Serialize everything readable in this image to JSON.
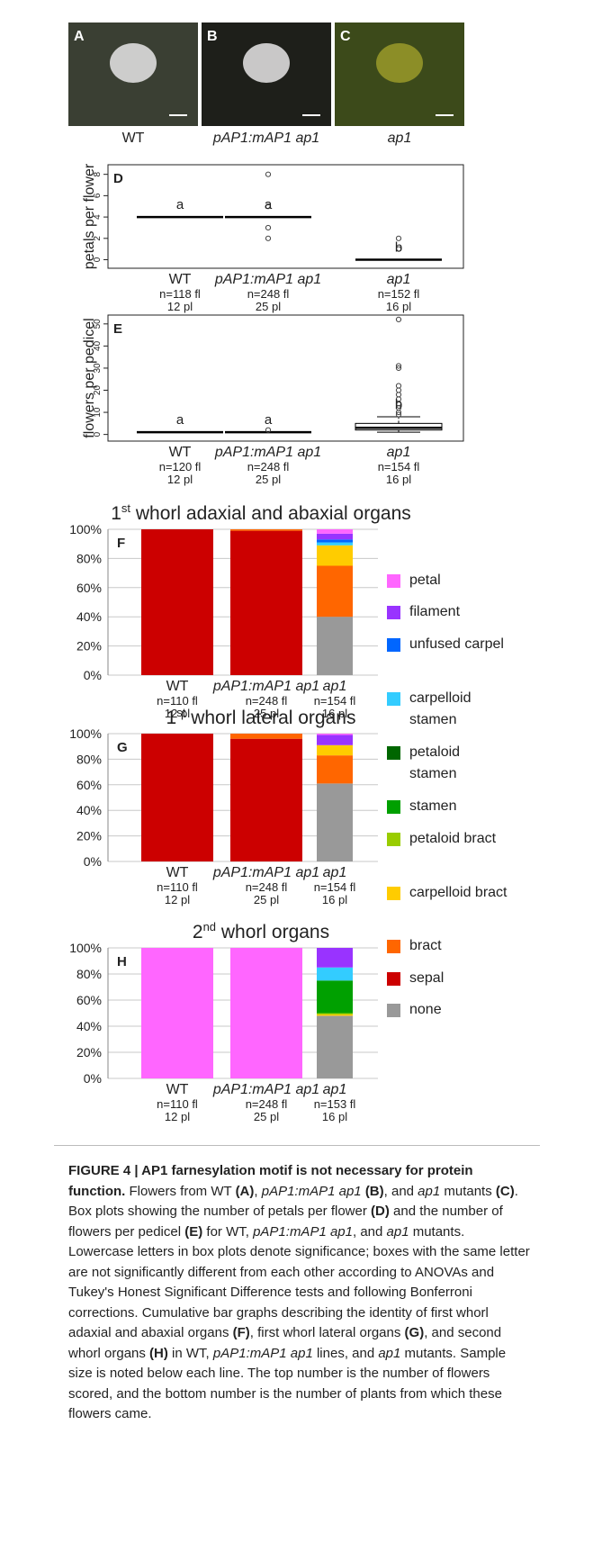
{
  "photos": [
    {
      "panel": "A",
      "label": "WT",
      "italic": false
    },
    {
      "panel": "B",
      "label": "pAP1:mAP1 ap1",
      "italic": true
    },
    {
      "panel": "C",
      "label": "ap1",
      "italic": true
    }
  ],
  "chart_data": [
    {
      "type": "box",
      "panel": "D",
      "ylabel": "petals per flower",
      "ylim": [
        -0.8,
        8.9
      ],
      "yticks": [
        0,
        2,
        4,
        6,
        8
      ],
      "categories": [
        "WT",
        "pAP1:mAP1 ap1",
        "ap1"
      ],
      "category_italic": [
        false,
        true,
        true
      ],
      "n_labels": [
        "n=118 fl",
        "n=248 fl",
        "n=152 fl"
      ],
      "pl_labels": [
        "12 pl",
        "25 pl",
        "16 pl"
      ],
      "color": "#000000",
      "groups": [
        {
          "median": 4,
          "q1": 4,
          "q3": 4,
          "lower": 4,
          "upper": 4,
          "outliers": [],
          "letter": "a"
        },
        {
          "median": 4,
          "q1": 4,
          "q3": 4,
          "lower": 4,
          "upper": 4,
          "outliers": [
            8,
            5,
            3,
            2
          ],
          "letter": "a"
        },
        {
          "median": 0,
          "q1": 0,
          "q3": 0,
          "lower": 0,
          "upper": 0,
          "outliers": [
            2,
            1
          ],
          "letter": "b"
        }
      ]
    },
    {
      "type": "box",
      "panel": "E",
      "ylabel": "flowers per pedicel",
      "ylim": [
        -3,
        54
      ],
      "yticks": [
        0,
        10,
        20,
        30,
        40,
        50
      ],
      "categories": [
        "WT",
        "pAP1:mAP1 ap1",
        "ap1"
      ],
      "category_italic": [
        false,
        true,
        true
      ],
      "n_labels": [
        "n=120 fl",
        "n=248 fl",
        "n=154 fl"
      ],
      "pl_labels": [
        "12 pl",
        "25 pl",
        "16 pl"
      ],
      "color": "#000000",
      "groups": [
        {
          "median": 1,
          "q1": 1,
          "q3": 1,
          "lower": 1,
          "upper": 1,
          "outliers": [],
          "letter": "a"
        },
        {
          "median": 1,
          "q1": 1,
          "q3": 1,
          "lower": 1,
          "upper": 1,
          "outliers": [
            2
          ],
          "letter": "a"
        },
        {
          "median": 3,
          "q1": 2,
          "q3": 5,
          "lower": 1,
          "upper": 8,
          "outliers": [
            9,
            10,
            12,
            14,
            16,
            18,
            20,
            22,
            30,
            31,
            52
          ],
          "letter": "b"
        }
      ]
    },
    {
      "type": "stacked_bar",
      "panel": "F",
      "title": {
        "main": "1",
        "sup": "st",
        "rest": " whorl adaxial and abaxial organs"
      },
      "categories": [
        "WT",
        "pAP1:mAP1 ap1",
        "ap1"
      ],
      "category_italic": [
        false,
        true,
        true
      ],
      "n_labels": [
        "n=110 fl",
        "n=248 fl",
        "n=154 fl"
      ],
      "pl_labels": [
        "12 pl",
        "25 pl",
        "16 pl"
      ],
      "ylim": [
        0,
        100
      ],
      "yticks": [
        {
          "value": 0,
          "label": "0%"
        },
        {
          "value": 20,
          "label": "20%"
        },
        {
          "value": 40,
          "label": "40%"
        },
        {
          "value": 60,
          "label": "60%"
        },
        {
          "value": 80,
          "label": "80%"
        },
        {
          "value": 100,
          "label": "100%"
        }
      ],
      "series": [
        {
          "name": "none",
          "color": "#999999",
          "values": [
            0,
            0,
            40
          ]
        },
        {
          "name": "sepal",
          "color": "#cc0000",
          "values": [
            100,
            99,
            0
          ]
        },
        {
          "name": "bract",
          "color": "#ff6600",
          "values": [
            0,
            1,
            35
          ]
        },
        {
          "name": "carpelloid bract",
          "color": "#ffcc00",
          "values": [
            0,
            0,
            14
          ]
        },
        {
          "name": "petaloid bract",
          "color": "#99cc00",
          "values": [
            0,
            0,
            0
          ]
        },
        {
          "name": "stamen",
          "color": "#00a000",
          "values": [
            0,
            0,
            0
          ]
        },
        {
          "name": "petaloid stamen",
          "color": "#006600",
          "values": [
            0,
            0,
            0
          ]
        },
        {
          "name": "carpelloid stamen",
          "color": "#33ccff",
          "values": [
            0,
            0,
            2
          ]
        },
        {
          "name": "unfused carpel",
          "color": "#0066ff",
          "values": [
            0,
            0,
            2
          ]
        },
        {
          "name": "filament",
          "color": "#9933ff",
          "values": [
            0,
            0,
            4
          ]
        },
        {
          "name": "petal",
          "color": "#ff66ff",
          "values": [
            0,
            0,
            3
          ]
        }
      ]
    },
    {
      "type": "stacked_bar",
      "panel": "G",
      "title": {
        "main": "1",
        "sup": "st",
        "rest": " whorl lateral organs"
      },
      "categories": [
        "WT",
        "pAP1:mAP1 ap1",
        "ap1"
      ],
      "category_italic": [
        false,
        true,
        true
      ],
      "n_labels": [
        "n=110 fl",
        "n=248 fl",
        "n=154 fl"
      ],
      "pl_labels": [
        "12 pl",
        "25 pl",
        "16 pl"
      ],
      "ylim": [
        0,
        100
      ],
      "yticks": [
        {
          "value": 0,
          "label": "0%"
        },
        {
          "value": 20,
          "label": "20%"
        },
        {
          "value": 40,
          "label": "40%"
        },
        {
          "value": 60,
          "label": "60%"
        },
        {
          "value": 80,
          "label": "80%"
        },
        {
          "value": 100,
          "label": "100%"
        }
      ],
      "series": [
        {
          "name": "none",
          "color": "#999999",
          "values": [
            0,
            0,
            61
          ]
        },
        {
          "name": "sepal",
          "color": "#cc0000",
          "values": [
            100,
            96,
            0
          ]
        },
        {
          "name": "bract",
          "color": "#ff6600",
          "values": [
            0,
            4,
            22
          ]
        },
        {
          "name": "carpelloid bract",
          "color": "#ffcc00",
          "values": [
            0,
            0,
            8
          ]
        },
        {
          "name": "petaloid bract",
          "color": "#99cc00",
          "values": [
            0,
            0,
            0
          ]
        },
        {
          "name": "stamen",
          "color": "#00a000",
          "values": [
            0,
            0,
            0
          ]
        },
        {
          "name": "petaloid stamen",
          "color": "#006600",
          "values": [
            0,
            0,
            0
          ]
        },
        {
          "name": "carpelloid stamen",
          "color": "#33ccff",
          "values": [
            0,
            0,
            0
          ]
        },
        {
          "name": "unfused carpel",
          "color": "#0066ff",
          "values": [
            0,
            0,
            0
          ]
        },
        {
          "name": "filament",
          "color": "#9933ff",
          "values": [
            0,
            0,
            8
          ]
        },
        {
          "name": "petal",
          "color": "#ff66ff",
          "values": [
            0,
            0,
            1
          ]
        }
      ]
    },
    {
      "type": "stacked_bar",
      "panel": "H",
      "title": {
        "main": "2",
        "sup": "nd",
        "rest": " whorl organs"
      },
      "categories": [
        "WT",
        "pAP1:mAP1 ap1",
        "ap1"
      ],
      "category_italic": [
        false,
        true,
        true
      ],
      "n_labels": [
        "n=110 fl",
        "n=248 fl",
        "n=153 fl"
      ],
      "pl_labels": [
        "12 pl",
        "25 pl",
        "16 pl"
      ],
      "ylim": [
        0,
        100
      ],
      "yticks": [
        {
          "value": 0,
          "label": "0%"
        },
        {
          "value": 20,
          "label": "20%"
        },
        {
          "value": 40,
          "label": "40%"
        },
        {
          "value": 60,
          "label": "60%"
        },
        {
          "value": 80,
          "label": "80%"
        },
        {
          "value": 100,
          "label": "100%"
        }
      ],
      "series": [
        {
          "name": "none",
          "color": "#999999",
          "values": [
            0,
            0,
            48
          ]
        },
        {
          "name": "sepal",
          "color": "#cc0000",
          "values": [
            0,
            0,
            0
          ]
        },
        {
          "name": "bract",
          "color": "#ff6600",
          "values": [
            0,
            0,
            0
          ]
        },
        {
          "name": "carpelloid bract",
          "color": "#ffcc00",
          "values": [
            0,
            0,
            1
          ]
        },
        {
          "name": "petaloid bract",
          "color": "#99cc00",
          "values": [
            0,
            0,
            1
          ]
        },
        {
          "name": "stamen",
          "color": "#00a000",
          "values": [
            0,
            0,
            25
          ]
        },
        {
          "name": "petaloid stamen",
          "color": "#006600",
          "values": [
            0,
            0,
            0
          ]
        },
        {
          "name": "carpelloid stamen",
          "color": "#33ccff",
          "values": [
            0,
            0,
            10
          ]
        },
        {
          "name": "unfused carpel",
          "color": "#0066ff",
          "values": [
            0,
            0,
            0
          ]
        },
        {
          "name": "filament",
          "color": "#9933ff",
          "values": [
            0,
            0,
            15
          ]
        },
        {
          "name": "petal",
          "color": "#ff66ff",
          "values": [
            100,
            100,
            0
          ]
        }
      ]
    }
  ],
  "caption": [
    {
      "text": "FIGURE 4 | AP1 farnesylation motif is not necessary for protein function.",
      "style": "bold"
    },
    {
      "text": " Flowers from WT ",
      "style": "normal"
    },
    {
      "text": "(A)",
      "style": "bold"
    },
    {
      "text": ", ",
      "style": "normal"
    },
    {
      "text": "pAP1:mAP1 ap1",
      "style": "italic"
    },
    {
      "text": " ",
      "style": "normal"
    },
    {
      "text": "(B)",
      "style": "bold"
    },
    {
      "text": ", and ",
      "style": "normal"
    },
    {
      "text": "ap1",
      "style": "italic"
    },
    {
      "text": " mutants ",
      "style": "normal"
    },
    {
      "text": "(C)",
      "style": "bold"
    },
    {
      "text": ". Box plots showing the number of petals per flower ",
      "style": "normal"
    },
    {
      "text": "(D)",
      "style": "bold"
    },
    {
      "text": " and the number of flowers per pedicel ",
      "style": "normal"
    },
    {
      "text": "(E)",
      "style": "bold"
    },
    {
      "text": " for WT, ",
      "style": "normal"
    },
    {
      "text": "pAP1:mAP1 ap1",
      "style": "italic"
    },
    {
      "text": ", and ",
      "style": "normal"
    },
    {
      "text": "ap1",
      "style": "italic"
    },
    {
      "text": " mutants. Lowercase letters in box plots denote significance; boxes with the same letter are not significantly different from each other according to ANOVAs and Tukey's Honest Significant Difference tests and following Bonferroni corrections. Cumulative bar graphs describing the identity of first whorl adaxial and abaxial organs ",
      "style": "normal"
    },
    {
      "text": "(F)",
      "style": "bold"
    },
    {
      "text": ", first whorl lateral organs ",
      "style": "normal"
    },
    {
      "text": "(G)",
      "style": "bold"
    },
    {
      "text": ", and second whorl organs ",
      "style": "normal"
    },
    {
      "text": "(H)",
      "style": "bold"
    },
    {
      "text": " in WT, ",
      "style": "normal"
    },
    {
      "text": "pAP1:mAP1 ap1",
      "style": "italic"
    },
    {
      "text": " lines, and ",
      "style": "normal"
    },
    {
      "text": "ap1",
      "style": "italic"
    },
    {
      "text": " mutants. Sample size is noted below each line. The top number is the number of flowers scored, and the bottom number is the number of plants from which these flowers came.",
      "style": "normal"
    }
  ]
}
